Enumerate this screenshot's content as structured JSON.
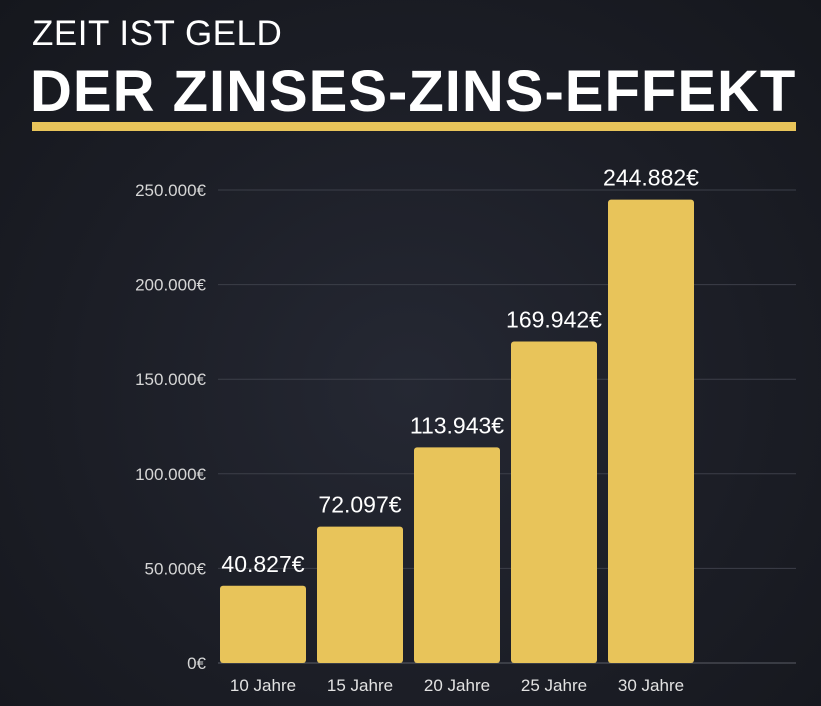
{
  "header": {
    "subtitle": "ZEIT IST GELD",
    "title": "DER ZINSES-ZINS-EFFEKT"
  },
  "colors": {
    "accent": "#e8c45a",
    "bar": "#e8c45a",
    "background": "#1b1d25"
  },
  "chart_data": {
    "type": "bar",
    "title": "",
    "xlabel": "",
    "ylabel": "",
    "categories": [
      "10 Jahre",
      "15 Jahre",
      "20 Jahre",
      "25 Jahre",
      "30 Jahre"
    ],
    "values": [
      40827,
      72097,
      113943,
      169942,
      244882
    ],
    "value_labels": [
      "40.827€",
      "72.097€",
      "113.943€",
      "169.942€",
      "244.882€"
    ],
    "ylim": [
      0,
      250000
    ],
    "yticks": [
      0,
      50000,
      100000,
      150000,
      200000,
      250000
    ],
    "ytick_labels": [
      "0€",
      "50.000€",
      "100.000€",
      "150.000€",
      "200.000€",
      "250.000€"
    ],
    "grid": true,
    "legend": "none"
  }
}
